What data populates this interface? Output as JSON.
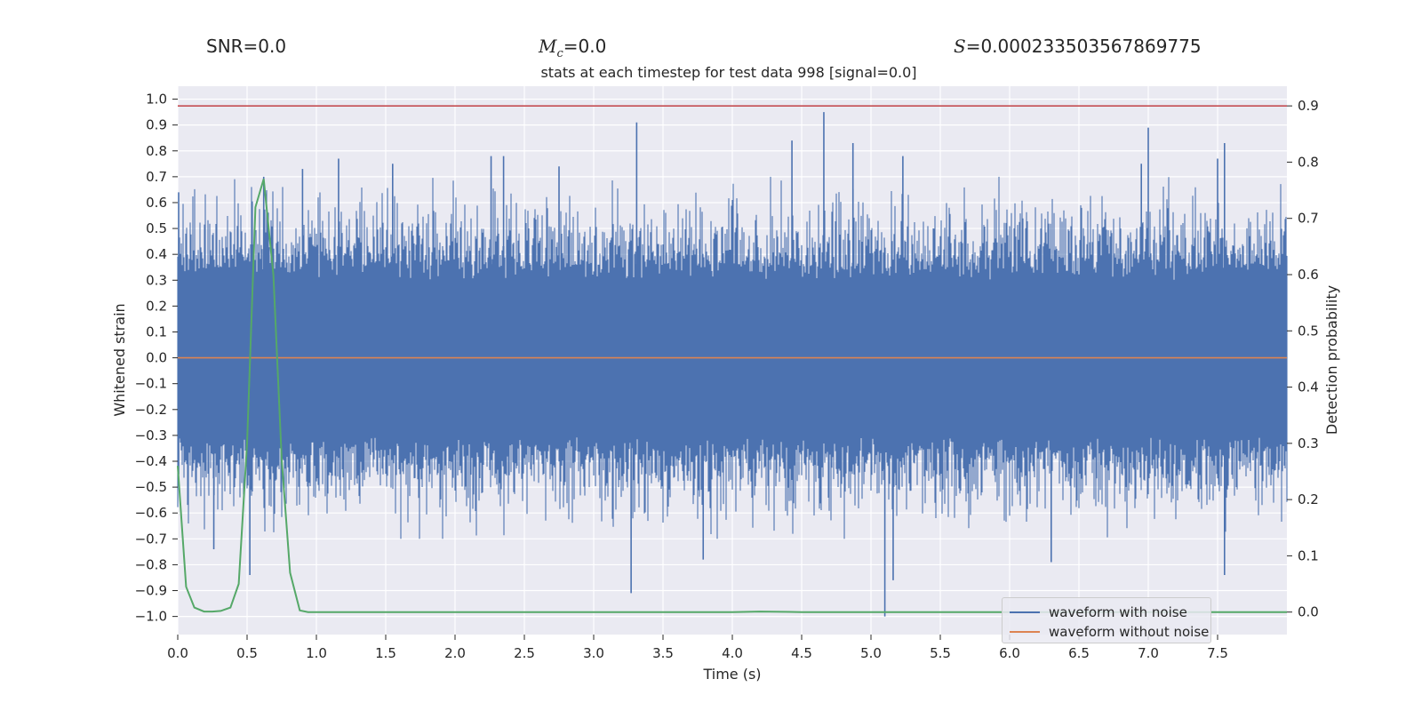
{
  "stats": {
    "snr": "SNR=0.0",
    "mc_symbol": "M",
    "mc_sub": "c",
    "mc_value": "=0.0",
    "s_symbol": "S",
    "s_value": "=0.000233503567869775"
  },
  "chart_data": {
    "type": "line",
    "title": "stats at each timestep for test data 998 [signal=0.0]",
    "xlabel": "Time (s)",
    "ylabel_left": "Whitened strain",
    "ylabel_right": "Detection probability",
    "xlim": [
      0.0,
      8.0
    ],
    "ylim_left": [
      -1.07,
      1.05
    ],
    "ylim_right": [
      -0.04,
      0.935
    ],
    "x_ticks": [
      "0.0",
      "0.5",
      "1.0",
      "1.5",
      "2.0",
      "2.5",
      "3.0",
      "3.5",
      "4.0",
      "4.5",
      "5.0",
      "5.5",
      "6.0",
      "6.5",
      "7.0",
      "7.5"
    ],
    "y_ticks_left": [
      "1.0",
      "0.9",
      "0.8",
      "0.7",
      "0.6",
      "0.5",
      "0.4",
      "0.3",
      "0.2",
      "0.1",
      "0.0",
      "-0.1",
      "-0.2",
      "-0.3",
      "-0.4",
      "-0.5",
      "-0.6",
      "-0.7",
      "-0.8",
      "-0.9",
      "-1.0"
    ],
    "y_ticks_right": [
      "0.9",
      "0.8",
      "0.7",
      "0.6",
      "0.5",
      "0.4",
      "0.3",
      "0.2",
      "0.1",
      "0.0"
    ],
    "threshold": {
      "value": 0.9,
      "axis": "right",
      "color": "#c44e52"
    },
    "series": [
      {
        "name": "waveform with noise",
        "axis": "left",
        "color": "#4c72b0",
        "style": "dense noise",
        "core_amplitude": 0.3,
        "typical_peak": 0.6,
        "peaks": [
          {
            "x": 0.0,
            "y": 0.64
          },
          {
            "x": 0.0,
            "y": -0.45
          },
          {
            "x": 0.26,
            "y": -0.74
          },
          {
            "x": 0.52,
            "y": -0.84
          },
          {
            "x": 0.62,
            "y": 0.7
          },
          {
            "x": 0.9,
            "y": 0.73
          },
          {
            "x": 1.16,
            "y": 0.77
          },
          {
            "x": 1.55,
            "y": 0.75
          },
          {
            "x": 2.26,
            "y": 0.78
          },
          {
            "x": 2.35,
            "y": 0.78
          },
          {
            "x": 2.75,
            "y": 0.74
          },
          {
            "x": 3.27,
            "y": -0.91
          },
          {
            "x": 3.31,
            "y": 0.91
          },
          {
            "x": 3.79,
            "y": -0.78
          },
          {
            "x": 4.43,
            "y": 0.84
          },
          {
            "x": 4.66,
            "y": 0.95
          },
          {
            "x": 4.87,
            "y": 0.83
          },
          {
            "x": 5.1,
            "y": -1.0
          },
          {
            "x": 5.16,
            "y": -0.86
          },
          {
            "x": 5.23,
            "y": 0.78
          },
          {
            "x": 6.3,
            "y": -0.79
          },
          {
            "x": 6.95,
            "y": 0.75
          },
          {
            "x": 7.0,
            "y": 0.89
          },
          {
            "x": 7.5,
            "y": 0.77
          },
          {
            "x": 7.55,
            "y": 0.83
          },
          {
            "x": 7.55,
            "y": -0.84
          }
        ]
      },
      {
        "name": "waveform without noise",
        "axis": "left",
        "color": "#dd8452",
        "x": [
          0.0,
          8.0
        ],
        "y": [
          0.0,
          0.0
        ]
      },
      {
        "name": "detection probability",
        "axis": "right",
        "color": "#55a868",
        "x": [
          0.0,
          0.06,
          0.12,
          0.19,
          0.25,
          0.31,
          0.38,
          0.44,
          0.5,
          0.56,
          0.62,
          0.69,
          0.75,
          0.81,
          0.88,
          0.94,
          1.0,
          2.0,
          3.0,
          4.0,
          4.2,
          4.5,
          5.0,
          6.0,
          7.0,
          8.0
        ],
        "y": [
          0.26,
          0.045,
          0.008,
          0.001,
          0.001,
          0.002,
          0.008,
          0.05,
          0.3,
          0.72,
          0.77,
          0.6,
          0.27,
          0.07,
          0.003,
          0.0,
          0.0,
          0.0,
          0.0,
          0.0,
          0.001,
          0.0,
          0.0,
          0.0,
          0.0,
          0.0
        ]
      }
    ],
    "legend": {
      "position": "lower-right",
      "entries": [
        "waveform with noise",
        "waveform without noise"
      ]
    },
    "grid": true
  }
}
